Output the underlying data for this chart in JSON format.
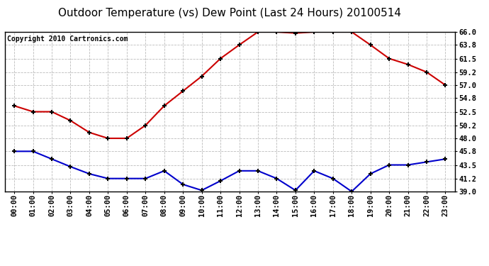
{
  "title": "Outdoor Temperature (vs) Dew Point (Last 24 Hours) 20100514",
  "copyright": "Copyright 2010 Cartronics.com",
  "x_labels": [
    "00:00",
    "01:00",
    "02:00",
    "03:00",
    "04:00",
    "05:00",
    "06:00",
    "07:00",
    "08:00",
    "09:00",
    "10:00",
    "11:00",
    "12:00",
    "13:00",
    "14:00",
    "15:00",
    "16:00",
    "17:00",
    "18:00",
    "19:00",
    "20:00",
    "21:00",
    "22:00",
    "23:00"
  ],
  "temp_data": [
    53.5,
    52.5,
    52.5,
    51.0,
    49.0,
    48.0,
    48.0,
    50.2,
    53.5,
    56.0,
    58.5,
    61.5,
    63.8,
    66.0,
    66.0,
    65.8,
    66.0,
    66.0,
    66.0,
    63.8,
    61.5,
    60.5,
    59.2,
    57.0
  ],
  "dew_data": [
    45.8,
    45.8,
    44.5,
    43.2,
    42.0,
    41.2,
    41.2,
    41.2,
    42.5,
    40.2,
    39.2,
    40.8,
    42.5,
    42.5,
    41.2,
    39.2,
    42.5,
    41.2,
    39.0,
    42.0,
    43.5,
    43.5,
    44.0,
    44.5
  ],
  "temp_color": "#cc0000",
  "dew_color": "#0000cc",
  "ylim": [
    39.0,
    66.0
  ],
  "yticks": [
    39.0,
    41.2,
    43.5,
    45.8,
    48.0,
    50.2,
    52.5,
    54.8,
    57.0,
    59.2,
    61.5,
    63.8,
    66.0
  ],
  "ytick_labels": [
    "39.0",
    "41.2",
    "43.5",
    "45.8",
    "48.0",
    "50.2",
    "52.5",
    "54.8",
    "57.0",
    "59.2",
    "61.5",
    "63.8",
    "66.0"
  ],
  "grid_color": "#aaaaaa",
  "bg_color": "#ffffff",
  "plot_bg": "#ffffff",
  "title_fontsize": 11,
  "label_fontsize": 7.5,
  "copyright_fontsize": 7
}
